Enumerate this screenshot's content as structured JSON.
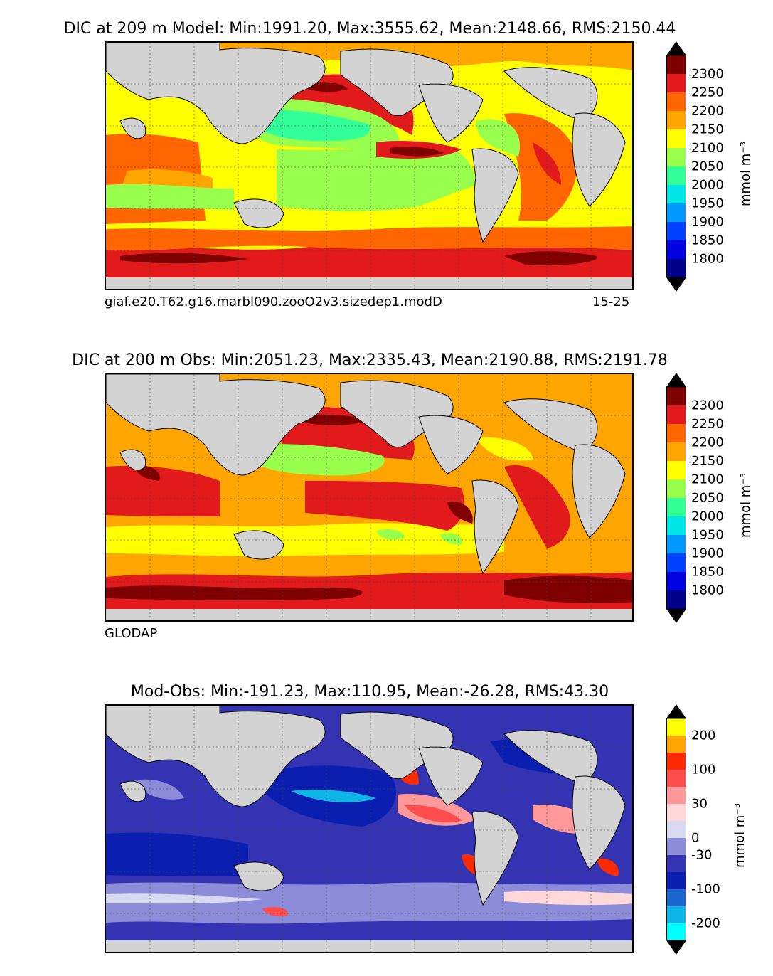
{
  "panels": [
    {
      "title": "DIC at 209 m Model: Min:1991.20, Max:3555.62, Mean:2148.66, RMS:2150.44",
      "footer_left": "giaf.e20.T62.g16.marbl090.zooO2v3.sizedep1.modD",
      "footer_right": "15-25"
    },
    {
      "title": "DIC at 200 m Obs: Min:2051.23, Max:2335.43, Mean:2190.88, RMS:2191.78",
      "footer_left": "GLODAP"
    },
    {
      "title": "Mod-Obs: Min:-191.23, Max:110.95, Mean:-26.28, RMS:43.30"
    }
  ],
  "colorbars": [
    {
      "unit": "mmol m⁻³",
      "ticks": [
        "2300",
        "2250",
        "2200",
        "2150",
        "2100",
        "2050",
        "2000",
        "1950",
        "1900",
        "1850",
        "1800"
      ],
      "colors": [
        "#7f0000",
        "#e31a1c",
        "#ff6600",
        "#ffa500",
        "#ffff00",
        "#99ff4d",
        "#33ff99",
        "#00e5e5",
        "#0099ff",
        "#0040ff",
        "#0000e0",
        "#00008b"
      ],
      "extend_top_color": "#000000",
      "extend_bottom_color": "#000000"
    },
    {
      "unit": "mmol m⁻³",
      "ticks": [
        "2300",
        "2250",
        "2200",
        "2150",
        "2100",
        "2050",
        "2000",
        "1950",
        "1900",
        "1850",
        "1800"
      ],
      "colors": [
        "#7f0000",
        "#e31a1c",
        "#ff6600",
        "#ffa500",
        "#ffff00",
        "#99ff4d",
        "#33ff99",
        "#00e5e5",
        "#0099ff",
        "#0040ff",
        "#0000e0",
        "#00008b"
      ],
      "extend_top_color": "#000000",
      "extend_bottom_color": "#000000"
    },
    {
      "unit": "mmol m⁻³",
      "ticks": [
        "200",
        "100",
        "30",
        "0",
        "-30",
        "-100",
        "-200"
      ],
      "colors": [
        "#ffff00",
        "#ffa500",
        "#ff2a00",
        "#ff4d4d",
        "#ff9999",
        "#ffd9d9",
        "#d9d9f2",
        "#8c8cd9",
        "#3333b3",
        "#0a1fb0",
        "#1a66cc",
        "#0fb5e6",
        "#00ffff"
      ],
      "extend_top_color": "#000000",
      "extend_bottom_color": "#000000"
    }
  ],
  "legend_map": {
    "ocean_background": "#cfcfcf",
    "land": "#d3d3d3"
  }
}
